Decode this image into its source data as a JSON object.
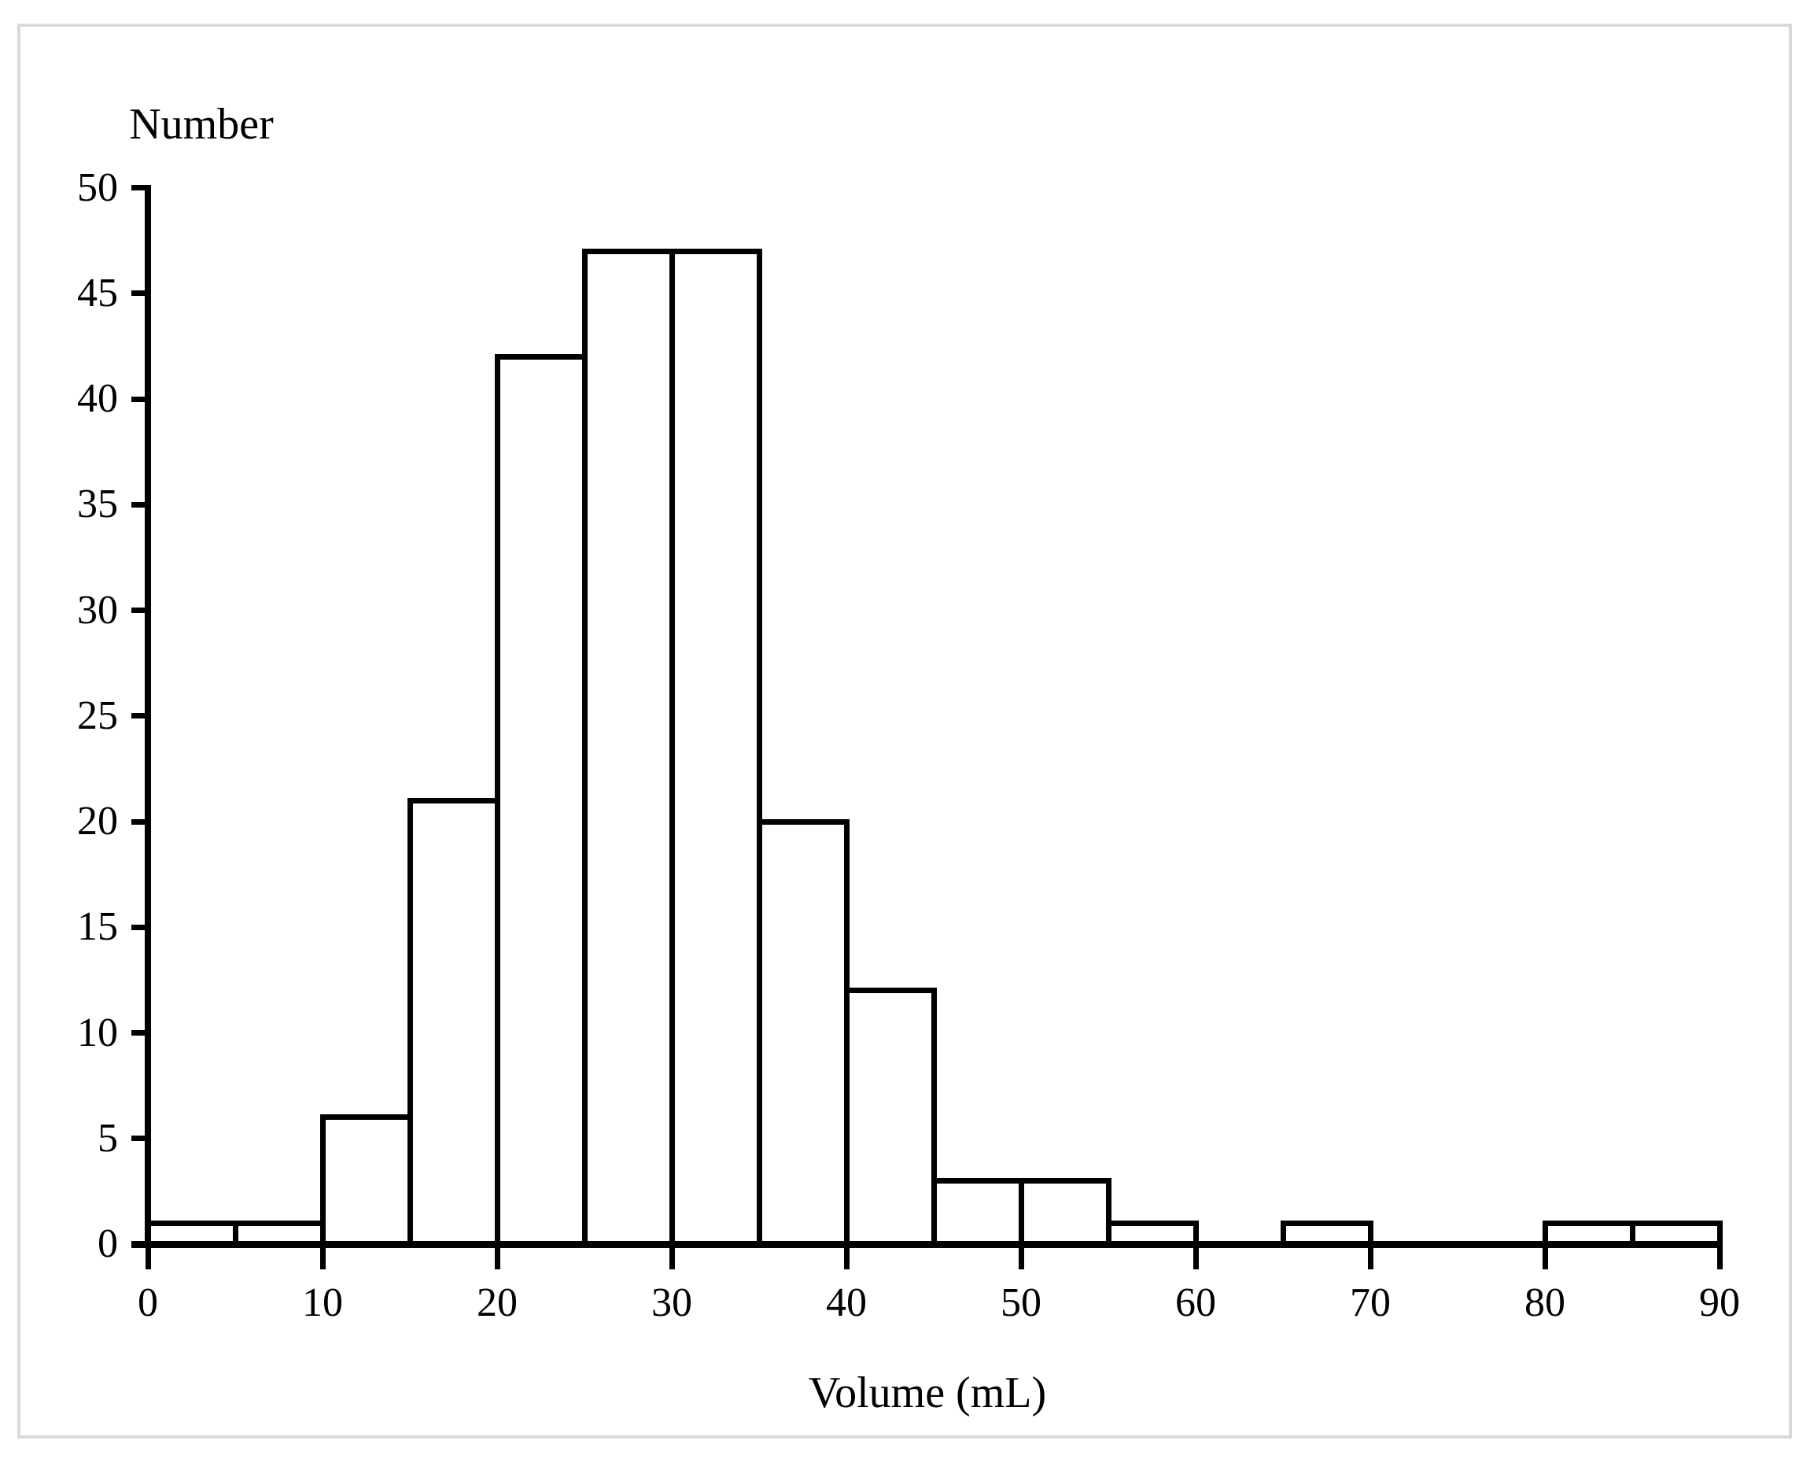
{
  "figure": {
    "background_color": "#ffffff",
    "frame_color": "#d9d9d9",
    "line_color": "#000000"
  },
  "chart_data": {
    "type": "bar",
    "subtype": "histogram",
    "title": "",
    "xlabel": "Volume (mL)",
    "ylabel": "Number",
    "xlim": [
      0,
      90
    ],
    "ylim": [
      0,
      50
    ],
    "grid": false,
    "legend": false,
    "bar_fill": "#ffffff",
    "bar_stroke": "#000000",
    "bin_width": 5,
    "x_ticks": [
      0,
      10,
      20,
      30,
      40,
      50,
      60,
      70,
      80,
      90
    ],
    "y_ticks": [
      0,
      5,
      10,
      15,
      20,
      25,
      30,
      35,
      40,
      45,
      50
    ],
    "bins": [
      {
        "start": 0,
        "end": 5,
        "count": 1
      },
      {
        "start": 5,
        "end": 10,
        "count": 1
      },
      {
        "start": 10,
        "end": 15,
        "count": 6
      },
      {
        "start": 15,
        "end": 20,
        "count": 21
      },
      {
        "start": 20,
        "end": 25,
        "count": 42
      },
      {
        "start": 25,
        "end": 30,
        "count": 47
      },
      {
        "start": 30,
        "end": 35,
        "count": 47
      },
      {
        "start": 35,
        "end": 40,
        "count": 20
      },
      {
        "start": 40,
        "end": 45,
        "count": 12
      },
      {
        "start": 45,
        "end": 50,
        "count": 3
      },
      {
        "start": 50,
        "end": 55,
        "count": 3
      },
      {
        "start": 55,
        "end": 60,
        "count": 1
      },
      {
        "start": 60,
        "end": 65,
        "count": 0
      },
      {
        "start": 65,
        "end": 70,
        "count": 1
      },
      {
        "start": 70,
        "end": 75,
        "count": 0
      },
      {
        "start": 75,
        "end": 80,
        "count": 0
      },
      {
        "start": 80,
        "end": 85,
        "count": 1
      },
      {
        "start": 85,
        "end": 90,
        "count": 1
      }
    ]
  }
}
